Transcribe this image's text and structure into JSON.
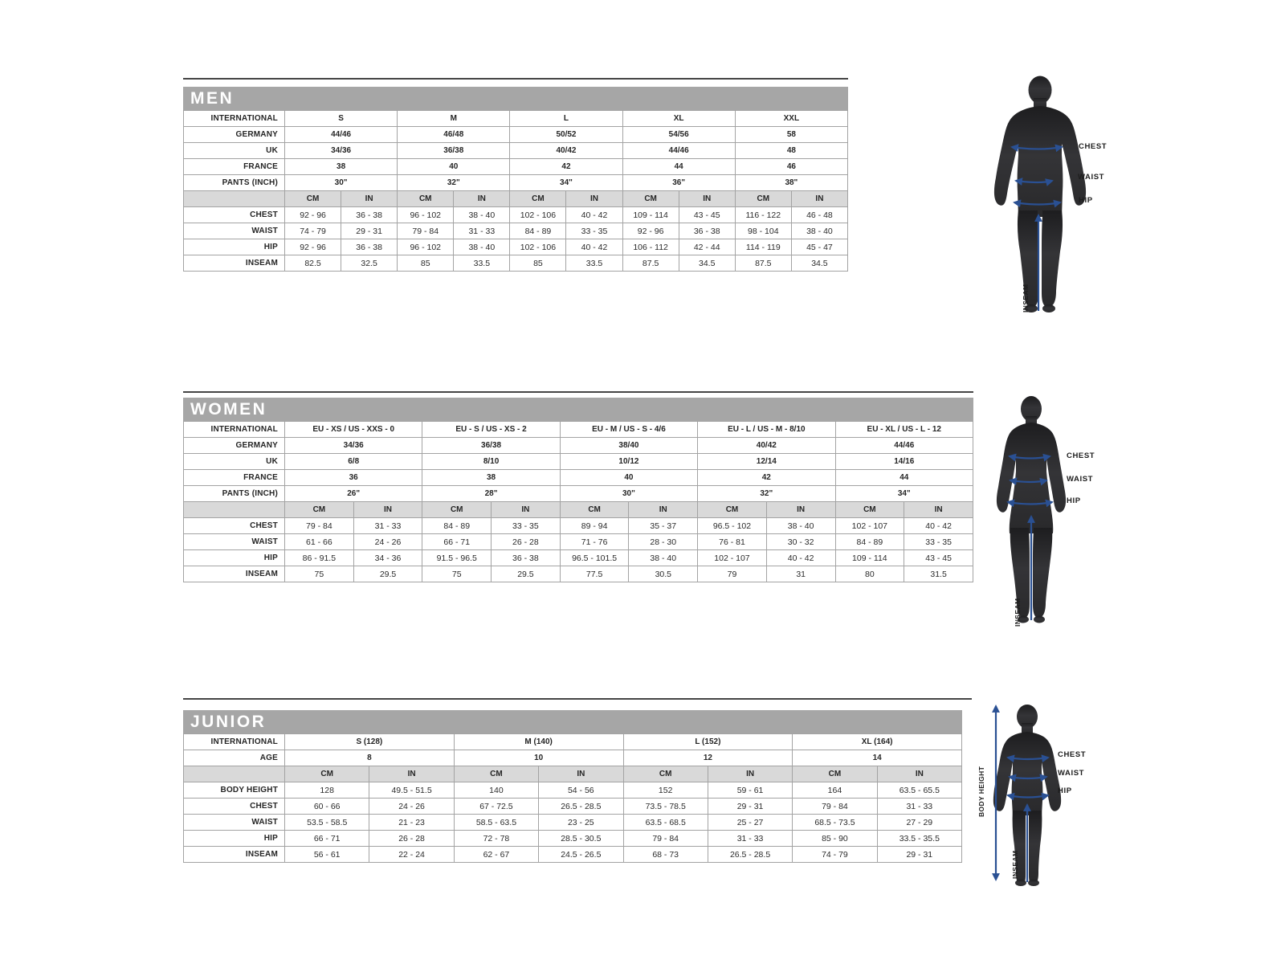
{
  "colors": {
    "header_bar": "#a6a6a6",
    "title_text": "#ffffff",
    "subheader_bg": "#d9d9d9",
    "border": "#a3a3a3",
    "text": "#232323",
    "top_line": "#454545",
    "arrow": "#2a5093",
    "silhouette": "#2e2e30"
  },
  "sections": [
    {
      "id": "men",
      "title": "MEN",
      "info_rows": [
        {
          "label": "INTERNATIONAL",
          "values": [
            "S",
            "M",
            "L",
            "XL",
            "XXL"
          ]
        },
        {
          "label": "GERMANY",
          "values": [
            "44/46",
            "46/48",
            "50/52",
            "54/56",
            "58"
          ]
        },
        {
          "label": "UK",
          "values": [
            "34/36",
            "36/38",
            "40/42",
            "44/46",
            "48"
          ]
        },
        {
          "label": "FRANCE",
          "values": [
            "38",
            "40",
            "42",
            "44",
            "46"
          ]
        },
        {
          "label": "PANTS (INCH)",
          "values": [
            "30\"",
            "32\"",
            "34\"",
            "36\"",
            "38\""
          ]
        }
      ],
      "unit_headers": [
        "CM",
        "IN"
      ],
      "measure_rows": [
        {
          "label": "CHEST",
          "cm": [
            "92 - 96",
            "96 - 102",
            "102 - 106",
            "109 - 114",
            "116 - 122"
          ],
          "in": [
            "36 - 38",
            "38 - 40",
            "40 - 42",
            "43 - 45",
            "46 - 48"
          ]
        },
        {
          "label": "WAIST",
          "cm": [
            "74 - 79",
            "79 - 84",
            "84 - 89",
            "92 - 96",
            "98 - 104"
          ],
          "in": [
            "29 - 31",
            "31 - 33",
            "33 - 35",
            "36 - 38",
            "38 - 40"
          ]
        },
        {
          "label": "HIP",
          "cm": [
            "92 - 96",
            "96 - 102",
            "102 - 106",
            "106 - 112",
            "114 - 119"
          ],
          "in": [
            "36 - 38",
            "38 - 40",
            "40 - 42",
            "42 - 44",
            "45 - 47"
          ]
        },
        {
          "label": "INSEAM",
          "cm": [
            "82.5",
            "85",
            "85",
            "87.5",
            "87.5"
          ],
          "in": [
            "32.5",
            "33.5",
            "33.5",
            "34.5",
            "34.5"
          ]
        }
      ],
      "figure": {
        "labels": {
          "chest": "CHEST",
          "waist": "WAIST",
          "hip": "HIP",
          "inseam": "INSEAM"
        }
      }
    },
    {
      "id": "women",
      "title": "WOMEN",
      "info_rows": [
        {
          "label": "INTERNATIONAL",
          "values": [
            "EU - XS / US - XXS - 0",
            "EU - S / US - XS - 2",
            "EU - M / US - S - 4/6",
            "EU - L / US - M - 8/10",
            "EU - XL / US - L - 12"
          ]
        },
        {
          "label": "GERMANY",
          "values": [
            "34/36",
            "36/38",
            "38/40",
            "40/42",
            "44/46"
          ]
        },
        {
          "label": "UK",
          "values": [
            "6/8",
            "8/10",
            "10/12",
            "12/14",
            "14/16"
          ]
        },
        {
          "label": "FRANCE",
          "values": [
            "36",
            "38",
            "40",
            "42",
            "44"
          ]
        },
        {
          "label": "PANTS (INCH)",
          "values": [
            "26\"",
            "28\"",
            "30\"",
            "32\"",
            "34\""
          ]
        }
      ],
      "unit_headers": [
        "CM",
        "IN"
      ],
      "measure_rows": [
        {
          "label": "CHEST",
          "cm": [
            "79 - 84",
            "84 - 89",
            "89 - 94",
            "96.5 - 102",
            "102 - 107"
          ],
          "in": [
            "31 - 33",
            "33 - 35",
            "35 - 37",
            "38 - 40",
            "40 - 42"
          ]
        },
        {
          "label": "WAIST",
          "cm": [
            "61 - 66",
            "66 - 71",
            "71 - 76",
            "76 - 81",
            "84 - 89"
          ],
          "in": [
            "24 - 26",
            "26 - 28",
            "28 - 30",
            "30 - 32",
            "33 - 35"
          ]
        },
        {
          "label": "HIP",
          "cm": [
            "86 - 91.5",
            "91.5 - 96.5",
            "96.5 - 101.5",
            "102 - 107",
            "109 - 114"
          ],
          "in": [
            "34 - 36",
            "36 - 38",
            "38 - 40",
            "40 - 42",
            "43 - 45"
          ]
        },
        {
          "label": "INSEAM",
          "cm": [
            "75",
            "75",
            "77.5",
            "79",
            "80"
          ],
          "in": [
            "29.5",
            "29.5",
            "30.5",
            "31",
            "31.5"
          ]
        }
      ],
      "figure": {
        "labels": {
          "chest": "CHEST",
          "waist": "WAIST",
          "hip": "HIP",
          "inseam": "INSEAM"
        }
      }
    },
    {
      "id": "junior",
      "title": "JUNIOR",
      "info_rows": [
        {
          "label": "INTERNATIONAL",
          "values": [
            "S (128)",
            "M (140)",
            "L (152)",
            "XL (164)"
          ]
        },
        {
          "label": "AGE",
          "values": [
            "8",
            "10",
            "12",
            "14"
          ]
        }
      ],
      "unit_headers": [
        "CM",
        "IN"
      ],
      "measure_rows": [
        {
          "label": "BODY HEIGHT",
          "cm": [
            "128",
            "140",
            "152",
            "164"
          ],
          "in": [
            "49.5 - 51.5",
            "54 - 56",
            "59 - 61",
            "63.5 - 65.5"
          ]
        },
        {
          "label": "CHEST",
          "cm": [
            "60 - 66",
            "67 - 72.5",
            "73.5 - 78.5",
            "79 - 84"
          ],
          "in": [
            "24 - 26",
            "26.5 - 28.5",
            "29 - 31",
            "31 - 33"
          ]
        },
        {
          "label": "WAIST",
          "cm": [
            "53.5 - 58.5",
            "58.5 - 63.5",
            "63.5 - 68.5",
            "68.5 - 73.5"
          ],
          "in": [
            "21 - 23",
            "23 - 25",
            "25 - 27",
            "27 - 29"
          ]
        },
        {
          "label": "HIP",
          "cm": [
            "66 - 71",
            "72 - 78",
            "79 - 84",
            "85 - 90"
          ],
          "in": [
            "26 - 28",
            "28.5 - 30.5",
            "31 - 33",
            "33.5 - 35.5"
          ]
        },
        {
          "label": "INSEAM",
          "cm": [
            "56 - 61",
            "62 - 67",
            "68 - 73",
            "74 - 79"
          ],
          "in": [
            "22 - 24",
            "24.5 - 26.5",
            "26.5 - 28.5",
            "29 - 31"
          ]
        }
      ],
      "figure": {
        "labels": {
          "chest": "CHEST",
          "waist": "WAIST",
          "hip": "HIP",
          "inseam": "INSEAM",
          "body_height": "BODY HEIGHT"
        }
      }
    }
  ]
}
